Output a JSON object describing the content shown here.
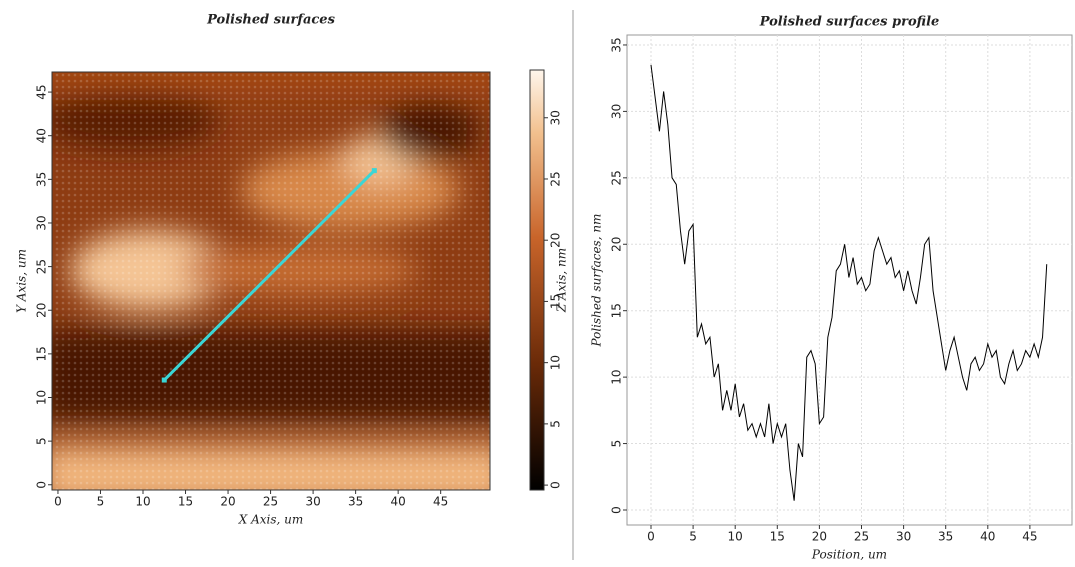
{
  "chart_data": [
    {
      "type": "heatmap",
      "title": "Polished surfaces",
      "x_label": "X Axis, um",
      "y_label": "Y Axis, um",
      "colorbar_label": "Z Axis, nm",
      "xlim": [
        -0.7,
        50.8
      ],
      "xticks": [
        0,
        5,
        10,
        15,
        20,
        25,
        30,
        35,
        40,
        45
      ],
      "ylim": [
        -0.6,
        47.3
      ],
      "yticks": [
        0,
        5,
        10,
        15,
        20,
        25,
        30,
        35,
        40,
        45
      ],
      "zlim": [
        -0.4,
        33.9
      ],
      "zticks": [
        0,
        5,
        10,
        15,
        20,
        25,
        30
      ],
      "profile_line": {
        "x": [
          12.5,
          37.2
        ],
        "y": [
          12,
          36
        ],
        "color": "#3ad6d6"
      }
    },
    {
      "type": "line",
      "title": "Polished surfaces profile",
      "x_label": "Position, um",
      "y_label": "Polished surfaces, nm",
      "grid": true,
      "xlim": [
        -2.85,
        50
      ],
      "xticks": [
        0,
        5,
        10,
        15,
        20,
        25,
        30,
        35,
        40,
        45
      ],
      "ylim": [
        -1.13,
        35.75
      ],
      "yticks": [
        0,
        5,
        10,
        15,
        20,
        25,
        30,
        35
      ],
      "x": [
        0,
        0.5,
        1,
        1.5,
        2,
        2.5,
        3,
        3.5,
        4,
        4.5,
        5,
        5.5,
        6,
        6.5,
        7,
        7.5,
        8,
        8.5,
        9,
        9.5,
        10,
        10.5,
        11,
        11.5,
        12,
        12.5,
        13,
        13.5,
        14,
        14.5,
        15,
        15.5,
        16,
        16.5,
        17,
        17.5,
        18,
        18.5,
        19,
        19.5,
        20,
        20.5,
        21,
        21.5,
        22,
        22.5,
        23,
        23.5,
        24,
        24.5,
        25,
        25.5,
        26,
        26.5,
        27,
        27.5,
        28,
        28.5,
        29,
        29.5,
        30,
        30.5,
        31,
        31.5,
        32,
        32.5,
        33,
        33.5,
        34,
        34.5,
        35,
        35.5,
        36,
        36.5,
        37,
        37.5,
        38,
        38.5,
        39,
        39.5,
        40,
        40.5,
        41,
        41.5,
        42,
        42.5,
        43,
        43.5,
        44,
        44.5,
        45,
        45.5,
        46,
        46.5,
        47
      ],
      "series": [
        {
          "name": "Polished surfaces",
          "color": "#000000",
          "values": [
            33.5,
            31,
            28.5,
            31.5,
            29,
            25,
            24.5,
            21,
            18.5,
            21,
            21.5,
            13,
            14,
            12.5,
            13,
            10,
            11,
            7.5,
            9,
            7.5,
            9.5,
            7,
            8,
            6,
            6.5,
            5.5,
            6.5,
            5.5,
            8,
            5,
            6.5,
            5.5,
            6.5,
            3,
            0.7,
            5,
            4,
            11.5,
            12,
            11,
            6.5,
            7,
            13,
            14.5,
            18,
            18.5,
            20,
            17.5,
            19,
            17,
            17.5,
            16.5,
            17,
            19.5,
            20.5,
            19.5,
            18.5,
            19,
            17.5,
            18,
            16.5,
            18,
            16.5,
            15.5,
            17.5,
            20,
            20.5,
            16.5,
            14.5,
            12.5,
            10.5,
            12,
            13,
            11.5,
            10,
            9,
            11,
            11.5,
            10.5,
            11,
            12.5,
            11.5,
            12,
            10,
            9.5,
            11,
            12,
            10.5,
            11,
            12,
            11.5,
            12.5,
            11.5,
            13,
            18.5
          ]
        }
      ]
    }
  ]
}
